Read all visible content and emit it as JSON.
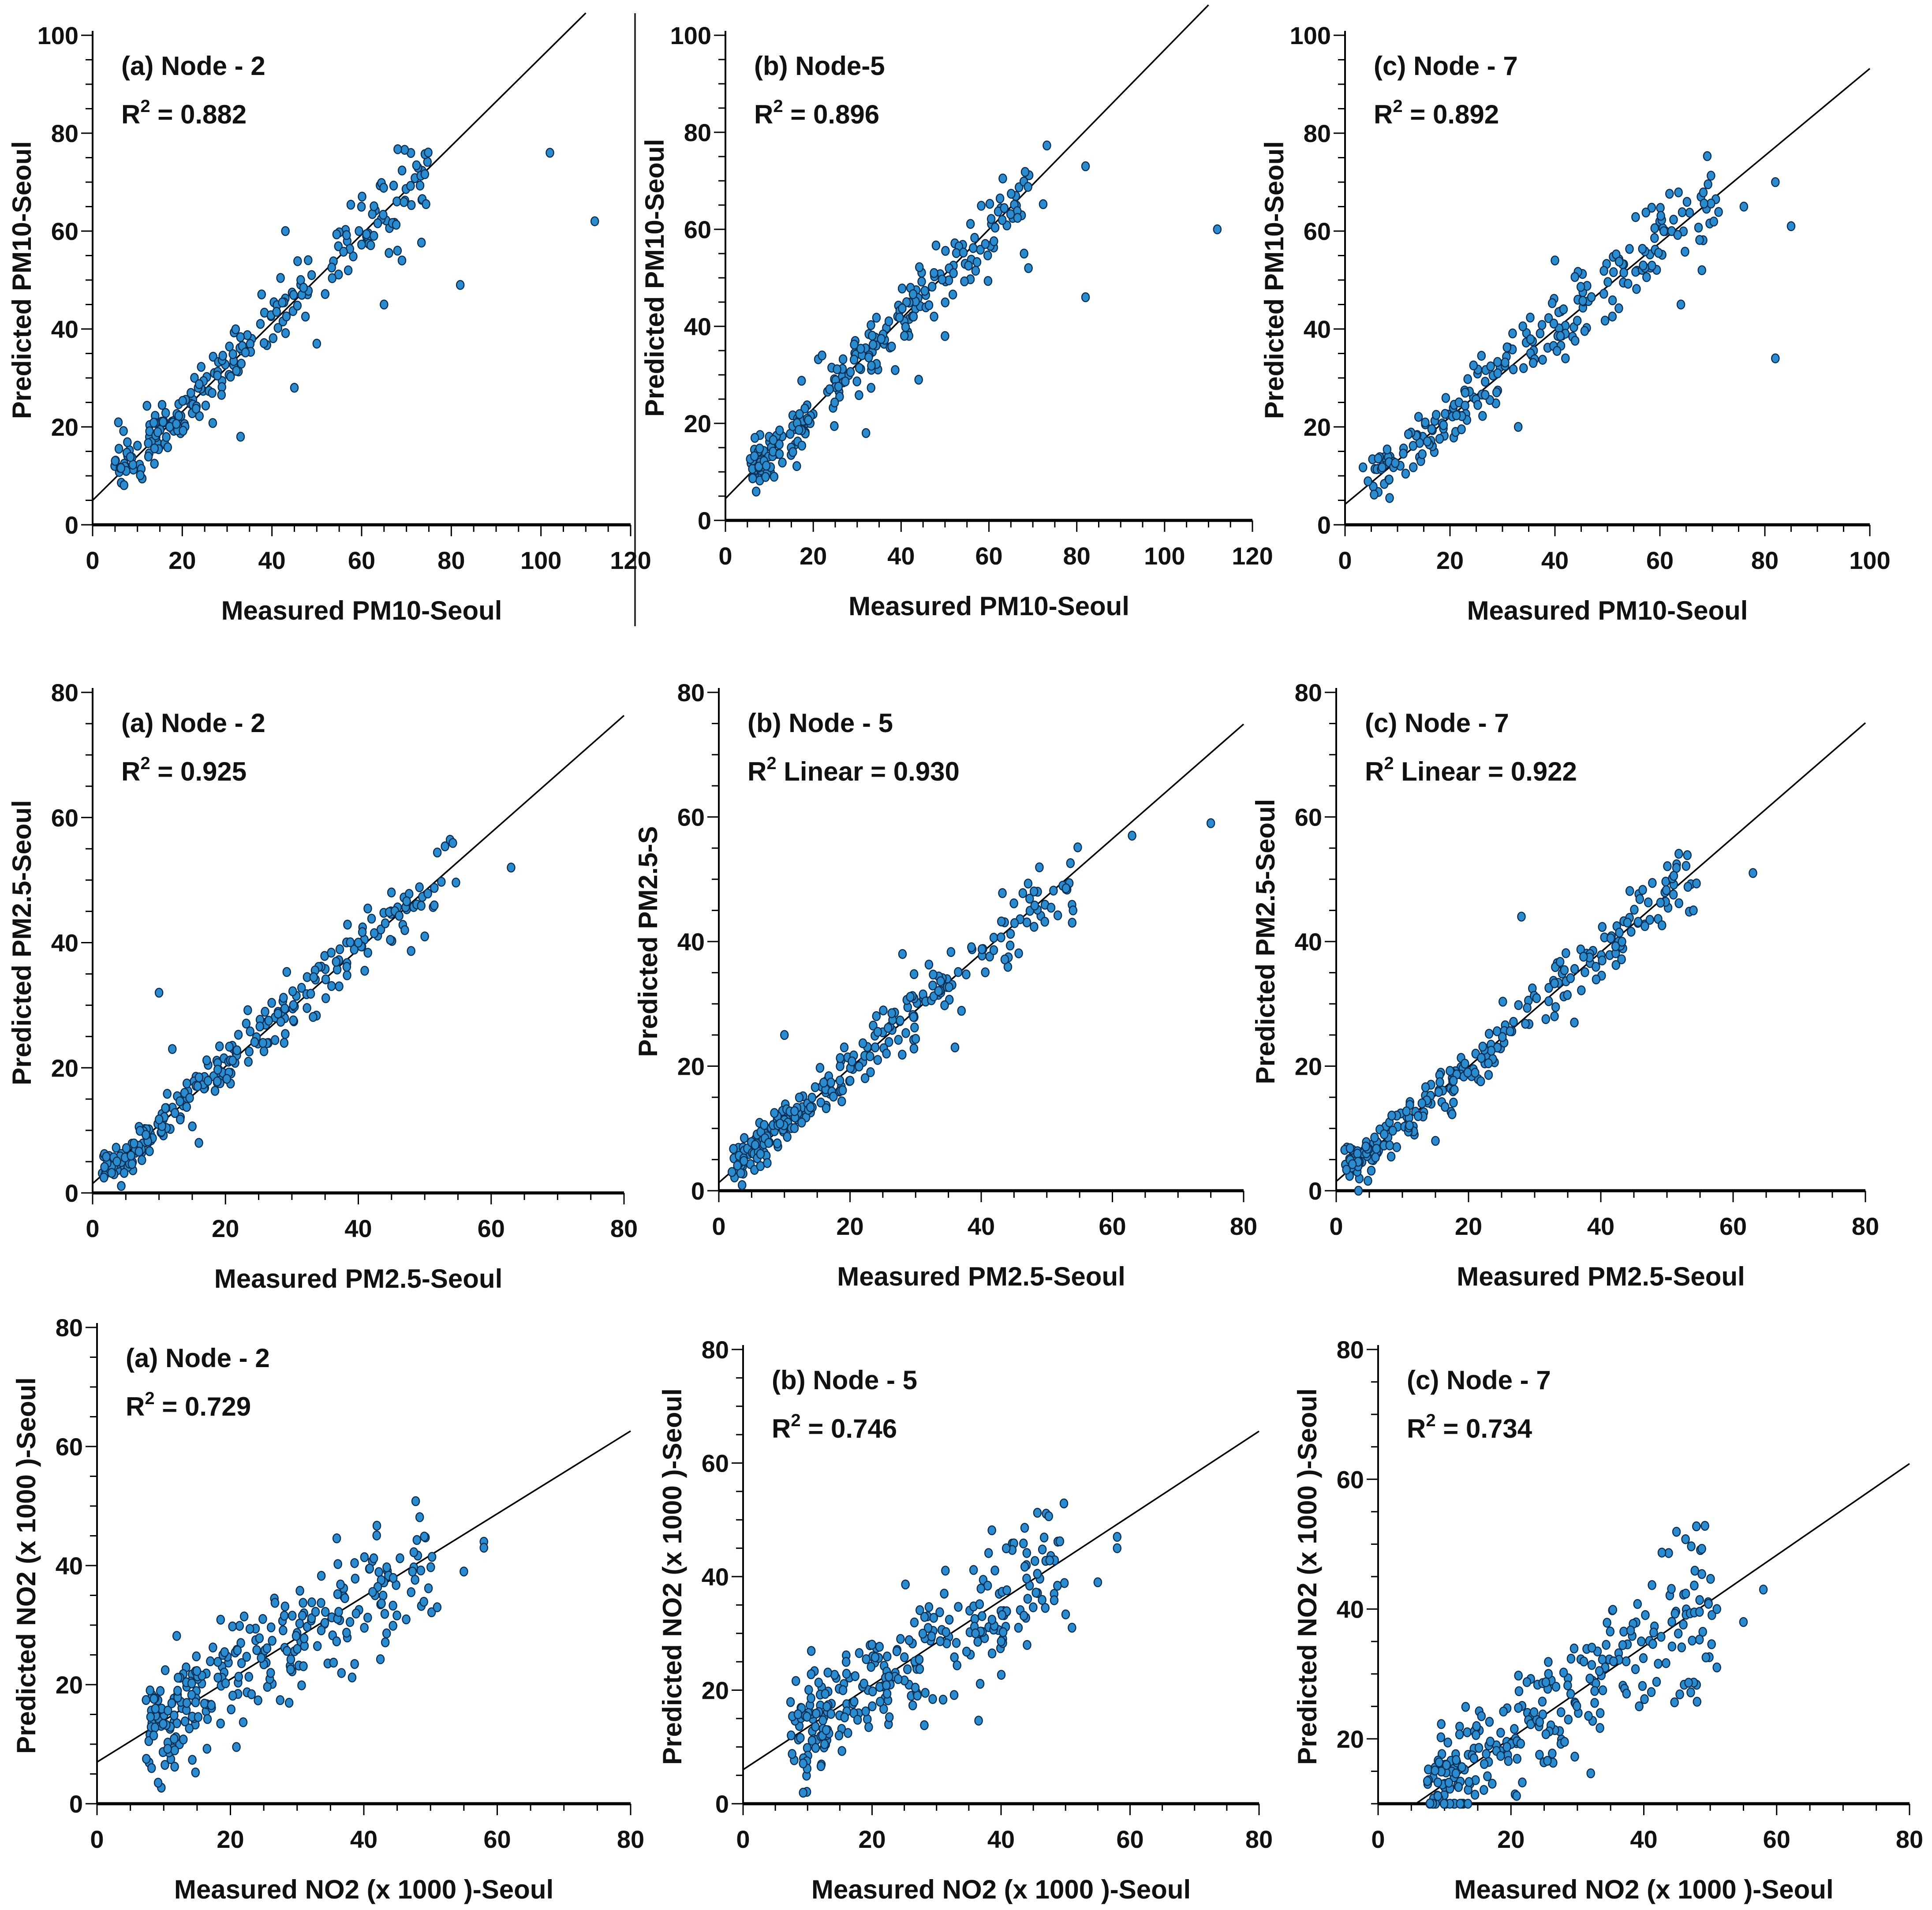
{
  "figure": {
    "separator_color": "#333333",
    "point_fill": "#2a8ccf",
    "point_stroke": "#0b2f55",
    "line_color": "#000000"
  },
  "chart_data": [
    {
      "type": "scatter",
      "panel_label": "(a) Node - 2",
      "r2_prefix": "R",
      "r2_sup": "2",
      "r2_value": " = 0.882",
      "xlabel": "Measured PM10-Seoul",
      "ylabel": "Predicted PM10-Seoul",
      "xlim": [
        0,
        120
      ],
      "ylim": [
        0,
        100
      ],
      "xticks": [
        "0",
        "20",
        "40",
        "60",
        "80",
        "100",
        "120"
      ],
      "yticks": [
        "0",
        "20",
        "40",
        "60",
        "80",
        "100"
      ],
      "fit": {
        "slope": 0.905,
        "intercept": 5.0,
        "x_range": [
          0,
          110
        ]
      },
      "cluster": {
        "n": 230,
        "x_min": 5,
        "x_max": 75,
        "spread": 3.6,
        "seed": 11
      },
      "outliers": [
        [
          82,
          49
        ],
        [
          102,
          76
        ],
        [
          112,
          62
        ],
        [
          65,
          45
        ],
        [
          45,
          28
        ],
        [
          50,
          37
        ],
        [
          33,
          18
        ],
        [
          43,
          60
        ],
        [
          68,
          56
        ],
        [
          69,
          54
        ]
      ]
    },
    {
      "type": "scatter",
      "panel_label": "(b) Node-5",
      "r2_prefix": "R",
      "r2_sup": "2",
      "r2_value": " = 0.896",
      "xlabel": "Measured PM10-Seoul",
      "ylabel": "Predicted PM10-Seoul",
      "xlim": [
        0,
        120
      ],
      "ylim": [
        0,
        100
      ],
      "xticks": [
        "0",
        "20",
        "40",
        "60",
        "80",
        "100",
        "120"
      ],
      "yticks": [
        "0",
        "20",
        "40",
        "60",
        "80",
        "100"
      ],
      "fit": {
        "slope": 0.925,
        "intercept": 4.5,
        "x_range": [
          0,
          110
        ]
      },
      "cluster": {
        "n": 240,
        "x_min": 6,
        "x_max": 73,
        "spread": 3.4,
        "seed": 23
      },
      "outliers": [
        [
          82,
          73
        ],
        [
          82,
          46
        ],
        [
          112,
          60
        ],
        [
          69,
          52
        ],
        [
          68,
          55
        ],
        [
          50,
          38
        ],
        [
          44,
          29
        ],
        [
          32,
          18
        ],
        [
          22,
          34
        ]
      ]
    },
    {
      "type": "scatter",
      "panel_label": "(c) Node - 7",
      "r2_prefix": "R",
      "r2_sup": "2",
      "r2_value": " = 0.892",
      "xlabel": "Measured PM10-Seoul",
      "ylabel": "Predicted PM10-Seoul",
      "xlim": [
        0,
        100
      ],
      "ylim": [
        0,
        100
      ],
      "xticks": [
        "0",
        "20",
        "40",
        "60",
        "80",
        "100"
      ],
      "yticks": [
        "0",
        "20",
        "40",
        "60",
        "80",
        "100"
      ],
      "fit": {
        "slope": 0.89,
        "intercept": 4.2,
        "x_range": [
          0,
          100
        ]
      },
      "cluster": {
        "n": 235,
        "x_min": 5,
        "x_max": 71,
        "spread": 3.6,
        "seed": 37
      },
      "outliers": [
        [
          82,
          70
        ],
        [
          85,
          61
        ],
        [
          82,
          34
        ],
        [
          76,
          65
        ],
        [
          68,
          52
        ],
        [
          64,
          45
        ],
        [
          33,
          20
        ],
        [
          40,
          54
        ],
        [
          42,
          34
        ]
      ]
    },
    {
      "type": "scatter",
      "panel_label": "(a) Node - 2",
      "r2_prefix": "R",
      "r2_sup": "2",
      "r2_value": " = 0.925",
      "xlabel": "Measured PM2.5-Seoul",
      "ylabel": "Predicted PM2.5-Seoul",
      "xlim": [
        0,
        80
      ],
      "ylim": [
        0,
        80
      ],
      "xticks": [
        "0",
        "20",
        "40",
        "60",
        "80"
      ],
      "yticks": [
        "0",
        "20",
        "40",
        "60",
        "80"
      ],
      "fit": {
        "slope": 0.935,
        "intercept": 1.5,
        "x_range": [
          0,
          80
        ]
      },
      "cluster": {
        "n": 250,
        "x_min": 2,
        "x_max": 54,
        "spread": 2.3,
        "seed": 41
      },
      "outliers": [
        [
          63,
          52
        ],
        [
          10,
          32
        ],
        [
          12,
          23
        ],
        [
          16,
          8
        ],
        [
          50,
          41
        ],
        [
          47,
          42
        ],
        [
          40,
          40
        ]
      ]
    },
    {
      "type": "scatter",
      "panel_label": "(b) Node - 5",
      "r2_prefix": "R",
      "r2_sup": "2",
      "r2_value": " Linear = 0.930",
      "xlabel": "Measured PM2.5-Seoul",
      "ylabel": "Predicted PM2.5-S",
      "xlim": [
        0,
        80
      ],
      "ylim": [
        0,
        80
      ],
      "xticks": [
        "0",
        "20",
        "40",
        "60",
        "80"
      ],
      "yticks": [
        "0",
        "20",
        "40",
        "60",
        "80"
      ],
      "fit": {
        "slope": 0.92,
        "intercept": 1.3,
        "x_range": [
          0,
          80
        ]
      },
      "cluster": {
        "n": 250,
        "x_min": 2,
        "x_max": 54,
        "spread": 2.2,
        "seed": 53
      },
      "outliers": [
        [
          63,
          57
        ],
        [
          75,
          59
        ],
        [
          10,
          25
        ],
        [
          2,
          3
        ],
        [
          54,
          45
        ],
        [
          28,
          38
        ],
        [
          36,
          23
        ]
      ]
    },
    {
      "type": "scatter",
      "panel_label": "(c) Node - 7",
      "r2_prefix": "R",
      "r2_sup": "2",
      "r2_value": " Linear = 0.922",
      "xlabel": "Measured PM2.5-Seoul",
      "ylabel": "Predicted PM2.5-Seoul",
      "xlim": [
        0,
        80
      ],
      "ylim": [
        0,
        80
      ],
      "xticks": [
        "0",
        "20",
        "40",
        "60",
        "80"
      ],
      "yticks": [
        "0",
        "20",
        "40",
        "60",
        "80"
      ],
      "fit": {
        "slope": 0.92,
        "intercept": 1.5,
        "x_range": [
          0,
          80
        ]
      },
      "cluster": {
        "n": 255,
        "x_min": 2,
        "x_max": 54,
        "spread": 2.2,
        "seed": 67
      },
      "outliers": [
        [
          63,
          51
        ],
        [
          28,
          44
        ],
        [
          15,
          8
        ],
        [
          33,
          28
        ],
        [
          36,
          27
        ],
        [
          54,
          45
        ]
      ]
    },
    {
      "type": "scatter",
      "panel_label": "(a) Node - 2",
      "r2_prefix": "R",
      "r2_sup": "2",
      "r2_value": " = 0.729",
      "xlabel": "Measured NO2 (x 1000 )-Seoul",
      "ylabel": "Predicted NO2 (x 1000 )-Seoul",
      "xlim": [
        0,
        80
      ],
      "ylim": [
        0,
        80
      ],
      "xticks": [
        "0",
        "20",
        "40",
        "60",
        "80"
      ],
      "yticks": [
        "0",
        "20",
        "40",
        "60",
        "80"
      ],
      "fit": {
        "slope": 0.695,
        "intercept": 7.0,
        "x_range": [
          0,
          80
        ]
      },
      "cluster": {
        "n": 270,
        "x_min": 8,
        "x_max": 50,
        "spread": 5.0,
        "seed": 71
      },
      "outliers": [
        [
          58,
          44
        ],
        [
          58,
          43
        ],
        [
          55,
          39
        ],
        [
          51,
          33
        ]
      ]
    },
    {
      "type": "scatter",
      "panel_label": "(b) Node - 5",
      "r2_prefix": "R",
      "r2_sup": "2",
      "r2_value": " = 0.746",
      "xlabel": "Measured NO2 (x 1000 )-Seoul",
      "ylabel": "Predicted NO2 (x 1000 )-Seoul",
      "xlim": [
        0,
        80
      ],
      "ylim": [
        0,
        80
      ],
      "xticks": [
        "0",
        "20",
        "40",
        "60",
        "80"
      ],
      "yticks": [
        "0",
        "20",
        "40",
        "60",
        "80"
      ],
      "fit": {
        "slope": 0.745,
        "intercept": 6.0,
        "x_range": [
          0,
          80
        ]
      },
      "cluster": {
        "n": 270,
        "x_min": 8,
        "x_max": 50,
        "spread": 5.0,
        "seed": 83
      },
      "outliers": [
        [
          58,
          47
        ],
        [
          58,
          45
        ],
        [
          55,
          39
        ],
        [
          51,
          31
        ]
      ]
    },
    {
      "type": "scatter",
      "panel_label": "(c) Node - 7",
      "r2_prefix": "R",
      "r2_sup": "2",
      "r2_value": " = 0.734",
      "xlabel": "Measured NO2 (x 1000 )-Seoul",
      "ylabel": "Predicted NO2 (x 1000 )-Seoul",
      "xlim": [
        0,
        80
      ],
      "ylim": [
        10,
        80
      ],
      "xticks": [
        "0",
        "20",
        "40",
        "60",
        "80"
      ],
      "yticks": [
        "20",
        "40",
        "60",
        "80"
      ],
      "fit": {
        "slope": 0.705,
        "intercept": 6.0,
        "x_range": [
          5.7,
          80
        ]
      },
      "cluster": {
        "n": 270,
        "x_min": 8,
        "x_max": 50,
        "spread": 5.0,
        "seed": 97
      },
      "outliers": [
        [
          58,
          43
        ],
        [
          55,
          38
        ],
        [
          51,
          31
        ],
        [
          51,
          40
        ]
      ]
    }
  ]
}
